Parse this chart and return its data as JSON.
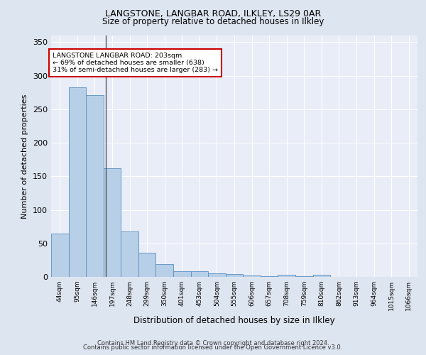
{
  "title1": "LANGSTONE, LANGBAR ROAD, ILKLEY, LS29 0AR",
  "title2": "Size of property relative to detached houses in Ilkley",
  "xlabel": "Distribution of detached houses by size in Ilkley",
  "ylabel": "Number of detached properties",
  "bar_labels": [
    "44sqm",
    "95sqm",
    "146sqm",
    "197sqm",
    "248sqm",
    "299sqm",
    "350sqm",
    "401sqm",
    "453sqm",
    "504sqm",
    "555sqm",
    "606sqm",
    "657sqm",
    "708sqm",
    "759sqm",
    "810sqm",
    "862sqm",
    "913sqm",
    "964sqm",
    "1015sqm",
    "1066sqm"
  ],
  "bar_heights": [
    65,
    283,
    271,
    162,
    68,
    36,
    19,
    8,
    9,
    5,
    4,
    2,
    1,
    3,
    1,
    3,
    0,
    0,
    0,
    0,
    0
  ],
  "bar_color": "#b8cfe8",
  "bar_edge_color": "#5a8fc0",
  "vline_x": 3.15,
  "annotation_title": "LANGSTONE LANGBAR ROAD: 203sqm",
  "annotation_line1": "← 69% of detached houses are smaller (638)",
  "annotation_line2": "31% of semi-detached houses are larger (283) →",
  "annotation_box_color": "#ffffff",
  "annotation_box_edge": "#cc0000",
  "ylim": [
    0,
    360
  ],
  "yticks": [
    0,
    50,
    100,
    150,
    200,
    250,
    300,
    350
  ],
  "footer1": "Contains HM Land Registry data © Crown copyright and database right 2024.",
  "footer2": "Contains public sector information licensed under the Open Government Licence v3.0.",
  "bg_color": "#dde5f0",
  "plot_bg_color": "#e8edf8"
}
